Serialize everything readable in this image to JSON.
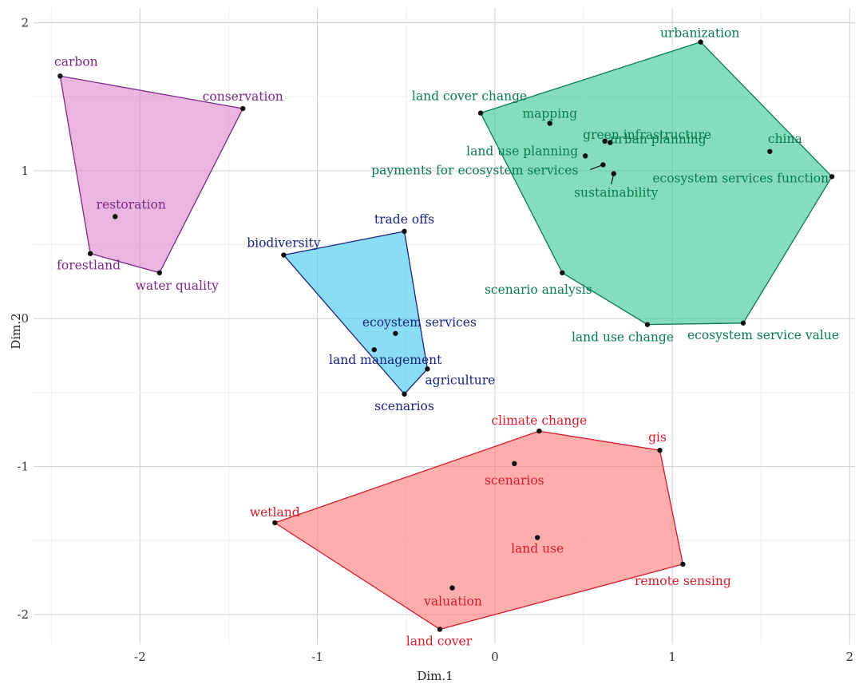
{
  "chart_data": {
    "type": "scatter",
    "xlabel": "Dim.1",
    "ylabel": "Dim.2",
    "xlim": [
      -2.6,
      2.03
    ],
    "ylim": [
      -2.2,
      2.1
    ],
    "xticks": [
      "-2",
      "-1",
      "0",
      "1",
      "2"
    ],
    "yticks": [
      "2",
      "1",
      "0",
      "-1",
      "-2"
    ],
    "grid": true,
    "clusters": [
      {
        "color": "#7b2a86",
        "fill": "#dd88cc",
        "hull": [
          "carbon",
          "conservation",
          "water quality",
          "forestland"
        ],
        "points": [
          {
            "label": "carbon",
            "x": -2.45,
            "y": 1.64
          },
          {
            "label": "conservation",
            "x": -1.42,
            "y": 1.42
          },
          {
            "label": "restoration",
            "x": -2.14,
            "y": 0.69
          },
          {
            "label": "forestland",
            "x": -2.28,
            "y": 0.44
          },
          {
            "label": "water quality",
            "x": -1.89,
            "y": 0.31
          }
        ]
      },
      {
        "color": "#1a237e",
        "fill": "#44c8f0",
        "hull": [
          "biodiversity",
          "trade offs",
          "agriculture",
          "scenarios"
        ],
        "points": [
          {
            "label": "trade offs",
            "x": -0.51,
            "y": 0.59
          },
          {
            "label": "biodiversity",
            "x": -1.19,
            "y": 0.43
          },
          {
            "label": "ecoystem services",
            "x": -0.56,
            "y": -0.1
          },
          {
            "label": "land management",
            "x": -0.68,
            "y": -0.21
          },
          {
            "label": "agriculture",
            "x": -0.38,
            "y": -0.34
          },
          {
            "label": "scenarios",
            "x": -0.51,
            "y": -0.51
          }
        ]
      },
      {
        "color": "#0a7a50",
        "fill": "#3cc896",
        "hull": [
          "land cover change",
          "urbanization",
          "ecosystem services function",
          "ecosystem service value",
          "land use change",
          "scenario analysis"
        ],
        "points": [
          {
            "label": "urbanization",
            "x": 1.16,
            "y": 1.87
          },
          {
            "label": "land cover change",
            "x": -0.08,
            "y": 1.39
          },
          {
            "label": "mapping",
            "x": 0.31,
            "y": 1.32
          },
          {
            "label": "green infrastructure",
            "x": 0.62,
            "y": 1.2
          },
          {
            "label": "china",
            "x": 1.55,
            "y": 1.13
          },
          {
            "label": "land use planning",
            "x": 0.51,
            "y": 1.1
          },
          {
            "label": "urban planning",
            "x": 0.65,
            "y": 1.19
          },
          {
            "label": "payments for ecosystem services",
            "x": 0.61,
            "y": 1.04
          },
          {
            "label": "ecosystem services function",
            "x": 1.9,
            "y": 0.96
          },
          {
            "label": "sustainability",
            "x": 0.67,
            "y": 0.98
          },
          {
            "label": "scenario analysis",
            "x": 0.38,
            "y": 0.31
          },
          {
            "label": "land use change",
            "x": 0.86,
            "y": -0.04
          },
          {
            "label": "ecosystem service value",
            "x": 1.4,
            "y": -0.03
          }
        ]
      },
      {
        "color": "#d81b2a",
        "fill": "#ff7b7b",
        "hull": [
          "wetland",
          "climate change",
          "gis",
          "remote sensing",
          "land cover"
        ],
        "points": [
          {
            "label": "climate change",
            "x": 0.25,
            "y": -0.76
          },
          {
            "label": "gis",
            "x": 0.93,
            "y": -0.89
          },
          {
            "label": "scenarios",
            "x": 0.11,
            "y": -0.98
          },
          {
            "label": "wetland",
            "x": -1.24,
            "y": -1.38
          },
          {
            "label": "land use",
            "x": 0.24,
            "y": -1.48
          },
          {
            "label": "remote sensing",
            "x": 1.06,
            "y": -1.66
          },
          {
            "label": "valuation",
            "x": -0.24,
            "y": -1.82
          },
          {
            "label": "land cover",
            "x": -0.31,
            "y": -2.1
          }
        ]
      }
    ]
  }
}
